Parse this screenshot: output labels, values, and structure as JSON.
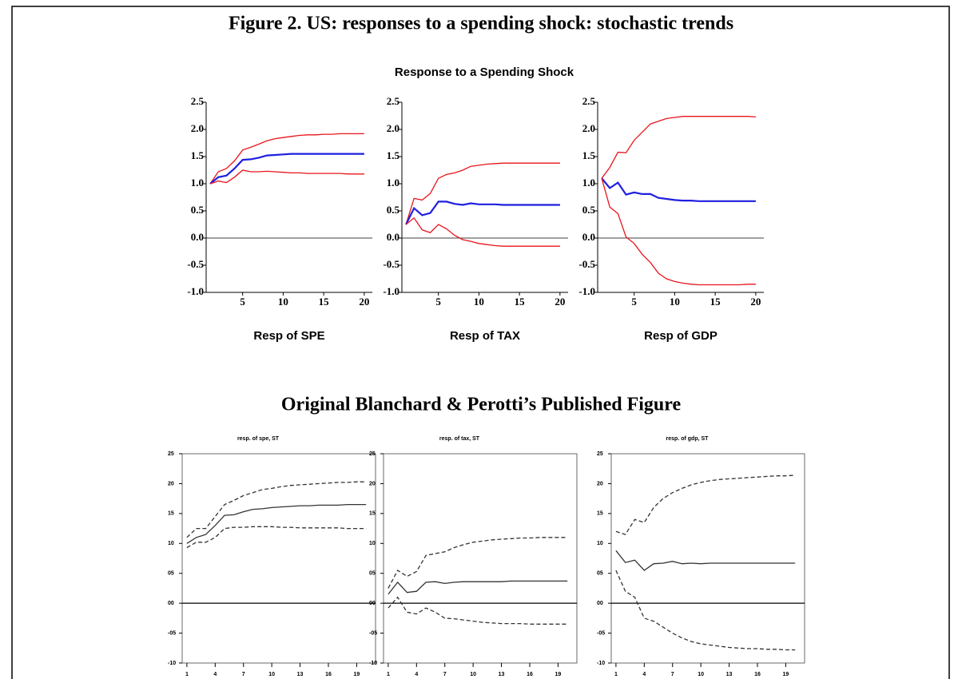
{
  "figure_title": "Figure 2. US: responses to a spending shock: stochastic trends",
  "group_title": "Response to a Spending Shock",
  "section_title": "Original Blanchard & Perotti’s Published Figure",
  "chart_data": [
    {
      "type": "line",
      "title": "Resp of  SPE",
      "x": [
        1,
        2,
        3,
        4,
        5,
        6,
        7,
        8,
        9,
        10,
        11,
        12,
        13,
        14,
        15,
        16,
        17,
        18,
        19,
        20
      ],
      "xlim": [
        0.5,
        21
      ],
      "xticks": [
        5,
        10,
        15,
        20
      ],
      "ylim": [
        -1,
        2.5
      ],
      "yticks": [
        2.5,
        {
          "value": 2,
          "label": "2.0"
        },
        1.5,
        {
          "value": 1,
          "label": "1.0"
        },
        0.5,
        {
          "value": 0,
          "label": "0.0"
        },
        -0.5,
        {
          "value": -1,
          "label": "-1.0"
        }
      ],
      "zero_line": true,
      "series": [
        {
          "color": "#e8141b",
          "values": [
            1.0,
            1.22,
            1.28,
            1.42,
            1.62,
            1.67,
            1.73,
            1.79,
            1.83,
            1.85,
            1.87,
            1.89,
            1.9,
            1.9,
            1.91,
            1.91,
            1.92,
            1.92,
            1.92,
            1.92
          ]
        },
        {
          "color": "#1f1fe0",
          "values": [
            1.0,
            1.12,
            1.15,
            1.28,
            1.44,
            1.45,
            1.48,
            1.52,
            1.53,
            1.54,
            1.55,
            1.55,
            1.55,
            1.55,
            1.55,
            1.55,
            1.55,
            1.55,
            1.55,
            1.55
          ]
        },
        {
          "color": "#e8141b",
          "values": [
            1.0,
            1.05,
            1.02,
            1.12,
            1.25,
            1.22,
            1.22,
            1.23,
            1.22,
            1.21,
            1.2,
            1.2,
            1.19,
            1.19,
            1.19,
            1.19,
            1.19,
            1.18,
            1.18,
            1.18
          ]
        }
      ]
    },
    {
      "type": "line",
      "title": "Resp of  TAX",
      "x": [
        1,
        2,
        3,
        4,
        5,
        6,
        7,
        8,
        9,
        10,
        11,
        12,
        13,
        14,
        15,
        16,
        17,
        18,
        19,
        20
      ],
      "xlim": [
        0.5,
        21
      ],
      "xticks": [
        5,
        10,
        15,
        20
      ],
      "ylim": [
        -1,
        2.5
      ],
      "yticks": [
        2.5,
        {
          "value": 2,
          "label": "2.0"
        },
        1.5,
        {
          "value": 1,
          "label": "1.0"
        },
        0.5,
        {
          "value": 0,
          "label": "0.0"
        },
        -0.5,
        {
          "value": -1,
          "label": "-1.0"
        }
      ],
      "zero_line": true,
      "series": [
        {
          "color": "#e8141b",
          "values": [
            0.25,
            0.73,
            0.7,
            0.82,
            1.1,
            1.17,
            1.2,
            1.25,
            1.32,
            1.34,
            1.36,
            1.37,
            1.38,
            1.38,
            1.38,
            1.38,
            1.38,
            1.38,
            1.38,
            1.38
          ]
        },
        {
          "color": "#1f1fe0",
          "values": [
            0.25,
            0.55,
            0.42,
            0.46,
            0.67,
            0.67,
            0.63,
            0.61,
            0.64,
            0.62,
            0.62,
            0.62,
            0.61,
            0.61,
            0.61,
            0.61,
            0.61,
            0.61,
            0.61,
            0.61
          ]
        },
        {
          "color": "#e8141b",
          "values": [
            0.25,
            0.37,
            0.15,
            0.1,
            0.25,
            0.17,
            0.05,
            -0.03,
            -0.06,
            -0.1,
            -0.12,
            -0.14,
            -0.15,
            -0.15,
            -0.15,
            -0.15,
            -0.15,
            -0.15,
            -0.15,
            -0.15
          ]
        }
      ]
    },
    {
      "type": "line",
      "title": "Resp of  GDP",
      "x": [
        1,
        2,
        3,
        4,
        5,
        6,
        7,
        8,
        9,
        10,
        11,
        12,
        13,
        14,
        15,
        16,
        17,
        18,
        19,
        20
      ],
      "xlim": [
        0.5,
        21
      ],
      "xticks": [
        5,
        10,
        15,
        20
      ],
      "ylim": [
        -1,
        2.5
      ],
      "yticks": [
        2.5,
        {
          "value": 2,
          "label": "2.0"
        },
        1.5,
        {
          "value": 1,
          "label": "1.0"
        },
        0.5,
        {
          "value": 0,
          "label": "0.0"
        },
        -0.5,
        {
          "value": -1,
          "label": "-1.0"
        }
      ],
      "zero_line": true,
      "series": [
        {
          "color": "#e8141b",
          "values": [
            1.1,
            1.3,
            1.58,
            1.57,
            1.8,
            1.95,
            2.1,
            2.15,
            2.2,
            2.22,
            2.24,
            2.24,
            2.24,
            2.24,
            2.24,
            2.24,
            2.24,
            2.24,
            2.24,
            2.23
          ]
        },
        {
          "color": "#1f1fe0",
          "values": [
            1.1,
            0.92,
            1.02,
            0.8,
            0.84,
            0.81,
            0.81,
            0.74,
            0.72,
            0.7,
            0.69,
            0.69,
            0.68,
            0.68,
            0.68,
            0.68,
            0.68,
            0.68,
            0.68,
            0.68
          ]
        },
        {
          "color": "#e8141b",
          "values": [
            1.1,
            0.57,
            0.45,
            0.02,
            -0.1,
            -0.3,
            -0.45,
            -0.65,
            -0.75,
            -0.8,
            -0.83,
            -0.85,
            -0.86,
            -0.86,
            -0.86,
            -0.86,
            -0.86,
            -0.86,
            -0.85,
            -0.85
          ]
        }
      ]
    },
    {
      "type": "line",
      "title": "resp. of spe, ST",
      "x": [
        1,
        2,
        3,
        4,
        5,
        6,
        7,
        8,
        9,
        10,
        11,
        12,
        13,
        14,
        15,
        16,
        17,
        18,
        19,
        20
      ],
      "xlim": [
        0.5,
        21
      ],
      "xticks": [
        1,
        4,
        7,
        10,
        13,
        16,
        19
      ],
      "ylim": [
        -10,
        25
      ],
      "yticks": [
        25,
        20,
        15,
        10,
        {
          "value": 5,
          "label": "05"
        },
        {
          "value": 0,
          "label": "00"
        },
        {
          "value": -5,
          "label": "-05"
        },
        -10
      ],
      "zero_line": true,
      "series": [
        {
          "color": "#333333",
          "dash": true,
          "values": [
            11,
            12.5,
            12.5,
            14.5,
            16.5,
            17.2,
            18,
            18.5,
            19,
            19.2,
            19.5,
            19.7,
            19.8,
            19.9,
            20,
            20.1,
            20.2,
            20.2,
            20.3,
            20.3
          ]
        },
        {
          "color": "#333333",
          "dash": false,
          "values": [
            10,
            11,
            11.5,
            13,
            14.7,
            14.8,
            15.3,
            15.7,
            15.8,
            16,
            16.1,
            16.2,
            16.3,
            16.3,
            16.4,
            16.4,
            16.4,
            16.5,
            16.5,
            16.5
          ]
        },
        {
          "color": "#333333",
          "dash": true,
          "values": [
            9.3,
            10.2,
            10.2,
            11,
            12.5,
            12.7,
            12.7,
            12.8,
            12.8,
            12.8,
            12.7,
            12.7,
            12.6,
            12.6,
            12.6,
            12.6,
            12.6,
            12.5,
            12.5,
            12.5
          ]
        }
      ]
    },
    {
      "type": "line",
      "title": "resp. of tax, ST",
      "x": [
        1,
        2,
        3,
        4,
        5,
        6,
        7,
        8,
        9,
        10,
        11,
        12,
        13,
        14,
        15,
        16,
        17,
        18,
        19,
        20
      ],
      "xlim": [
        0.5,
        21
      ],
      "xticks": [
        1,
        4,
        7,
        10,
        13,
        16,
        19
      ],
      "ylim": [
        -10,
        25
      ],
      "yticks": [
        25,
        20,
        15,
        10,
        {
          "value": 5,
          "label": "05"
        },
        {
          "value": 0,
          "label": "00"
        },
        {
          "value": -5,
          "label": "-05"
        },
        -10
      ],
      "zero_line": true,
      "series": [
        {
          "color": "#333333",
          "dash": true,
          "values": [
            2.5,
            5.5,
            4.5,
            5.3,
            8,
            8.3,
            8.6,
            9.3,
            9.8,
            10.2,
            10.4,
            10.6,
            10.7,
            10.8,
            10.9,
            10.9,
            11,
            11,
            11,
            11
          ]
        },
        {
          "color": "#333333",
          "dash": false,
          "values": [
            1.5,
            3.5,
            1.8,
            2,
            3.5,
            3.6,
            3.3,
            3.5,
            3.6,
            3.6,
            3.6,
            3.6,
            3.6,
            3.7,
            3.7,
            3.7,
            3.7,
            3.7,
            3.7,
            3.7
          ]
        },
        {
          "color": "#333333",
          "dash": true,
          "values": [
            -0.8,
            1,
            -1.5,
            -1.8,
            -0.8,
            -1.5,
            -2.5,
            -2.6,
            -2.8,
            -3,
            -3.2,
            -3.3,
            -3.4,
            -3.4,
            -3.4,
            -3.5,
            -3.5,
            -3.5,
            -3.5,
            -3.5
          ]
        }
      ]
    },
    {
      "type": "line",
      "title": "resp. of gdp, ST",
      "x": [
        1,
        2,
        3,
        4,
        5,
        6,
        7,
        8,
        9,
        10,
        11,
        12,
        13,
        14,
        15,
        16,
        17,
        18,
        19,
        20
      ],
      "xlim": [
        0.5,
        21
      ],
      "xticks": [
        1,
        4,
        7,
        10,
        13,
        16,
        19
      ],
      "ylim": [
        -10,
        25
      ],
      "yticks": [
        25,
        20,
        15,
        10,
        {
          "value": 5,
          "label": "05"
        },
        {
          "value": 0,
          "label": "00"
        },
        {
          "value": -5,
          "label": "-05"
        },
        -10
      ],
      "zero_line": true,
      "series": [
        {
          "color": "#333333",
          "dash": true,
          "values": [
            12,
            11.5,
            14,
            13.5,
            16,
            17.5,
            18.5,
            19.2,
            19.8,
            20.2,
            20.5,
            20.7,
            20.8,
            20.9,
            21,
            21.1,
            21.2,
            21.3,
            21.3,
            21.4
          ]
        },
        {
          "color": "#333333",
          "dash": false,
          "values": [
            8.8,
            6.8,
            7.2,
            5.5,
            6.6,
            6.7,
            7,
            6.6,
            6.7,
            6.6,
            6.7,
            6.7,
            6.7,
            6.7,
            6.7,
            6.7,
            6.7,
            6.7,
            6.7,
            6.7
          ]
        },
        {
          "color": "#333333",
          "dash": true,
          "values": [
            5.5,
            2,
            1,
            -2.5,
            -3,
            -4,
            -5,
            -5.8,
            -6.4,
            -6.8,
            -7,
            -7.2,
            -7.4,
            -7.5,
            -7.6,
            -7.6,
            -7.7,
            -7.7,
            -7.8,
            -7.8
          ]
        }
      ]
    }
  ]
}
